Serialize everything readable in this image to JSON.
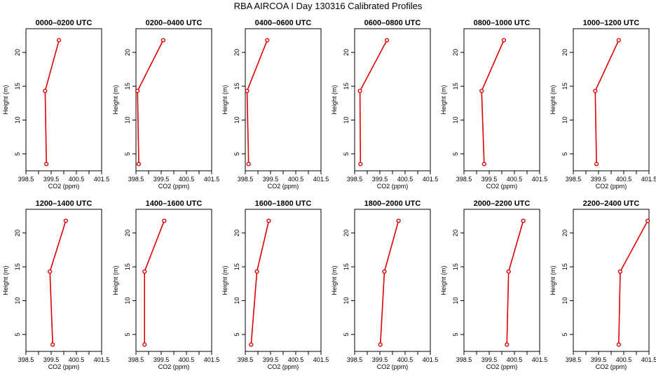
{
  "figure": {
    "title": "RBA AIRCOA I  Day 130316  Calibrated Profiles",
    "line_color": "#dd0000"
  },
  "chart_data": [
    {
      "type": "line",
      "title": "0000–0200 UTC",
      "xlabel": "CO2 (ppm)",
      "ylabel": "Height (m)",
      "xlim": [
        398.5,
        401.5
      ],
      "ylim": [
        2.5,
        23.5
      ],
      "xticks": [
        "398.5",
        "399.5",
        "400.5",
        "401.5"
      ],
      "yticks": [
        "5",
        "10",
        "15",
        "20"
      ],
      "series": [
        {
          "x": [
            399.31,
            399.26,
            399.81
          ],
          "y": [
            3.5,
            14.3,
            21.8
          ]
        }
      ]
    },
    {
      "type": "line",
      "title": "0200–0400 UTC",
      "xlabel": "CO2 (ppm)",
      "ylabel": "Height (m)",
      "xlim": [
        398.5,
        401.5
      ],
      "ylim": [
        2.5,
        23.5
      ],
      "xticks": [
        "398.5",
        "399.5",
        "400.5",
        "401.5"
      ],
      "yticks": [
        "5",
        "10",
        "15",
        "20"
      ],
      "series": [
        {
          "x": [
            398.61,
            398.56,
            399.58
          ],
          "y": [
            3.5,
            14.3,
            21.8
          ]
        }
      ]
    },
    {
      "type": "line",
      "title": "0400–0600 UTC",
      "xlabel": "CO2 (ppm)",
      "ylabel": "Height (m)",
      "xlim": [
        398.5,
        401.5
      ],
      "ylim": [
        2.5,
        23.5
      ],
      "xticks": [
        "398.5",
        "399.5",
        "400.5",
        "401.5"
      ],
      "yticks": [
        "5",
        "10",
        "15",
        "20"
      ],
      "series": [
        {
          "x": [
            398.63,
            398.57,
            399.37
          ],
          "y": [
            3.5,
            14.3,
            21.8
          ]
        }
      ]
    },
    {
      "type": "line",
      "title": "0600–0800 UTC",
      "xlabel": "CO2 (ppm)",
      "ylabel": "Height (m)",
      "xlim": [
        398.5,
        401.5
      ],
      "ylim": [
        2.5,
        23.5
      ],
      "xticks": [
        "398.5",
        "399.5",
        "400.5",
        "401.5"
      ],
      "yticks": [
        "5",
        "10",
        "15",
        "20"
      ],
      "series": [
        {
          "x": [
            398.73,
            398.71,
            399.78
          ],
          "y": [
            3.5,
            14.3,
            21.8
          ]
        }
      ]
    },
    {
      "type": "line",
      "title": "0800–1000 UTC",
      "xlabel": "CO2 (ppm)",
      "ylabel": "Height (m)",
      "xlim": [
        398.5,
        401.5
      ],
      "ylim": [
        2.5,
        23.5
      ],
      "xticks": [
        "398.5",
        "399.5",
        "400.5",
        "401.5"
      ],
      "yticks": [
        "5",
        "10",
        "15",
        "20"
      ],
      "series": [
        {
          "x": [
            399.3,
            399.2,
            400.08
          ],
          "y": [
            3.5,
            14.3,
            21.8
          ]
        }
      ]
    },
    {
      "type": "line",
      "title": "1000–1200 UTC",
      "xlabel": "CO2 (ppm)",
      "ylabel": "Height (m)",
      "xlim": [
        398.5,
        401.5
      ],
      "ylim": [
        2.5,
        23.5
      ],
      "xticks": [
        "398.5",
        "399.5",
        "400.5",
        "401.5"
      ],
      "yticks": [
        "5",
        "10",
        "15",
        "20"
      ],
      "series": [
        {
          "x": [
            399.42,
            399.37,
            400.3
          ],
          "y": [
            3.5,
            14.3,
            21.8
          ]
        }
      ]
    },
    {
      "type": "line",
      "title": "1200–1400 UTC",
      "xlabel": "CO2 (ppm)",
      "ylabel": "Height (m)",
      "xlim": [
        398.5,
        401.5
      ],
      "ylim": [
        2.5,
        23.5
      ],
      "xticks": [
        "398.5",
        "399.5",
        "400.5",
        "401.5"
      ],
      "yticks": [
        "5",
        "10",
        "15",
        "20"
      ],
      "series": [
        {
          "x": [
            399.56,
            399.45,
            400.08
          ],
          "y": [
            3.5,
            14.3,
            21.8
          ]
        }
      ]
    },
    {
      "type": "line",
      "title": "1400–1600 UTC",
      "xlabel": "CO2 (ppm)",
      "ylabel": "Height (m)",
      "xlim": [
        398.5,
        401.5
      ],
      "ylim": [
        2.5,
        23.5
      ],
      "xticks": [
        "398.5",
        "399.5",
        "400.5",
        "401.5"
      ],
      "yticks": [
        "5",
        "10",
        "15",
        "20"
      ],
      "series": [
        {
          "x": [
            398.84,
            398.84,
            399.62
          ],
          "y": [
            3.5,
            14.3,
            21.8
          ]
        }
      ]
    },
    {
      "type": "line",
      "title": "1600–1800 UTC",
      "xlabel": "CO2 (ppm)",
      "ylabel": "Height (m)",
      "xlim": [
        398.5,
        401.5
      ],
      "ylim": [
        2.5,
        23.5
      ],
      "xticks": [
        "398.5",
        "399.5",
        "400.5",
        "401.5"
      ],
      "yticks": [
        "5",
        "10",
        "15",
        "20"
      ],
      "series": [
        {
          "x": [
            398.73,
            398.96,
            399.43
          ],
          "y": [
            3.5,
            14.3,
            21.8
          ]
        }
      ]
    },
    {
      "type": "line",
      "title": "1800–2000 UTC",
      "xlabel": "CO2 (ppm)",
      "ylabel": "Height (m)",
      "xlim": [
        398.5,
        401.5
      ],
      "ylim": [
        2.5,
        23.5
      ],
      "xticks": [
        "398.5",
        "399.5",
        "400.5",
        "401.5"
      ],
      "yticks": [
        "5",
        "10",
        "15",
        "20"
      ],
      "series": [
        {
          "x": [
            399.52,
            399.68,
            400.24
          ],
          "y": [
            3.5,
            14.3,
            21.8
          ]
        }
      ]
    },
    {
      "type": "line",
      "title": "2000–2200 UTC",
      "xlabel": "CO2 (ppm)",
      "ylabel": "Height (m)",
      "xlim": [
        398.5,
        401.5
      ],
      "ylim": [
        2.5,
        23.5
      ],
      "xticks": [
        "398.5",
        "399.5",
        "400.5",
        "401.5"
      ],
      "yticks": [
        "5",
        "10",
        "15",
        "20"
      ],
      "series": [
        {
          "x": [
            400.2,
            400.27,
            400.85
          ],
          "y": [
            3.5,
            14.3,
            21.8
          ]
        }
      ]
    },
    {
      "type": "line",
      "title": "2200–2400 UTC",
      "xlabel": "CO2 (ppm)",
      "ylabel": "Height (m)",
      "xlim": [
        398.5,
        401.5
      ],
      "ylim": [
        2.5,
        23.5
      ],
      "xticks": [
        "398.5",
        "399.5",
        "400.5",
        "401.5"
      ],
      "yticks": [
        "5",
        "10",
        "15",
        "20"
      ],
      "series": [
        {
          "x": [
            400.3,
            400.36,
            401.45
          ],
          "y": [
            3.5,
            14.3,
            21.8
          ]
        }
      ]
    }
  ]
}
